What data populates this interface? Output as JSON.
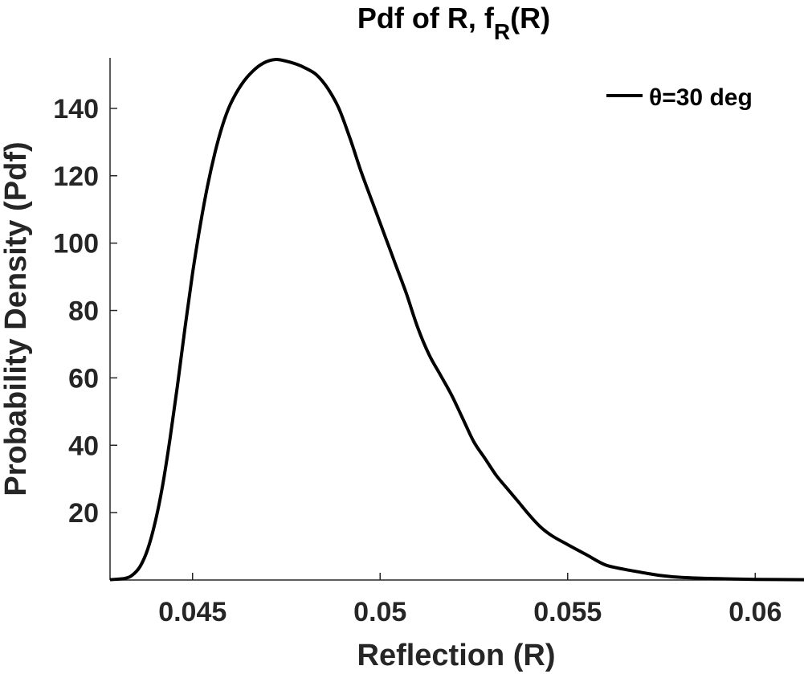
{
  "chart_data": {
    "type": "line",
    "title_main": "Pdf of R, f",
    "title_sub": "R",
    "title_end": "(R)",
    "xlabel": "Reflection (R)",
    "ylabel": "Probability Density (Pdf)",
    "xlim": [
      0.0428,
      0.0613
    ],
    "ylim": [
      0,
      155
    ],
    "xticks": [
      0.045,
      0.05,
      0.055,
      0.06
    ],
    "xtick_labels": [
      "0.045",
      "0.05",
      "0.055",
      "0.06"
    ],
    "yticks": [
      20,
      40,
      60,
      80,
      100,
      120,
      140
    ],
    "ytick_labels": [
      "20",
      "40",
      "60",
      "80",
      "100",
      "120",
      "140"
    ],
    "grid": false,
    "legend_position": "top-right",
    "series": [
      {
        "name": "θ=30 deg",
        "color": "#000000",
        "x": [
          0.0428,
          0.0432,
          0.0434,
          0.0436,
          0.0438,
          0.044,
          0.0442,
          0.0444,
          0.0446,
          0.0448,
          0.045,
          0.0452,
          0.0454,
          0.0456,
          0.0458,
          0.046,
          0.0463,
          0.0466,
          0.0469,
          0.0472,
          0.0475,
          0.0478,
          0.048,
          0.0483,
          0.0486,
          0.0489,
          0.0492,
          0.0495,
          0.0498,
          0.0501,
          0.0504,
          0.0507,
          0.051,
          0.0513,
          0.0516,
          0.0519,
          0.0522,
          0.0525,
          0.0528,
          0.0531,
          0.0534,
          0.0537,
          0.054,
          0.0543,
          0.0546,
          0.055,
          0.0555,
          0.056,
          0.0565,
          0.057,
          0.0575,
          0.058,
          0.059,
          0.06,
          0.0613
        ],
        "y": [
          0.1,
          0.5,
          1.5,
          4,
          9,
          17,
          28,
          42,
          58,
          75,
          91,
          105,
          117,
          127,
          135,
          141,
          147,
          151,
          153.5,
          154.5,
          154,
          153,
          152,
          150,
          146,
          140,
          131,
          121,
          112,
          103,
          94,
          85,
          75,
          67,
          61,
          55,
          48,
          41,
          36,
          31,
          27,
          23,
          19,
          15.5,
          13,
          10.5,
          7.5,
          4.5,
          3.2,
          2.2,
          1.3,
          0.8,
          0.4,
          0.2,
          0.1
        ]
      }
    ]
  }
}
